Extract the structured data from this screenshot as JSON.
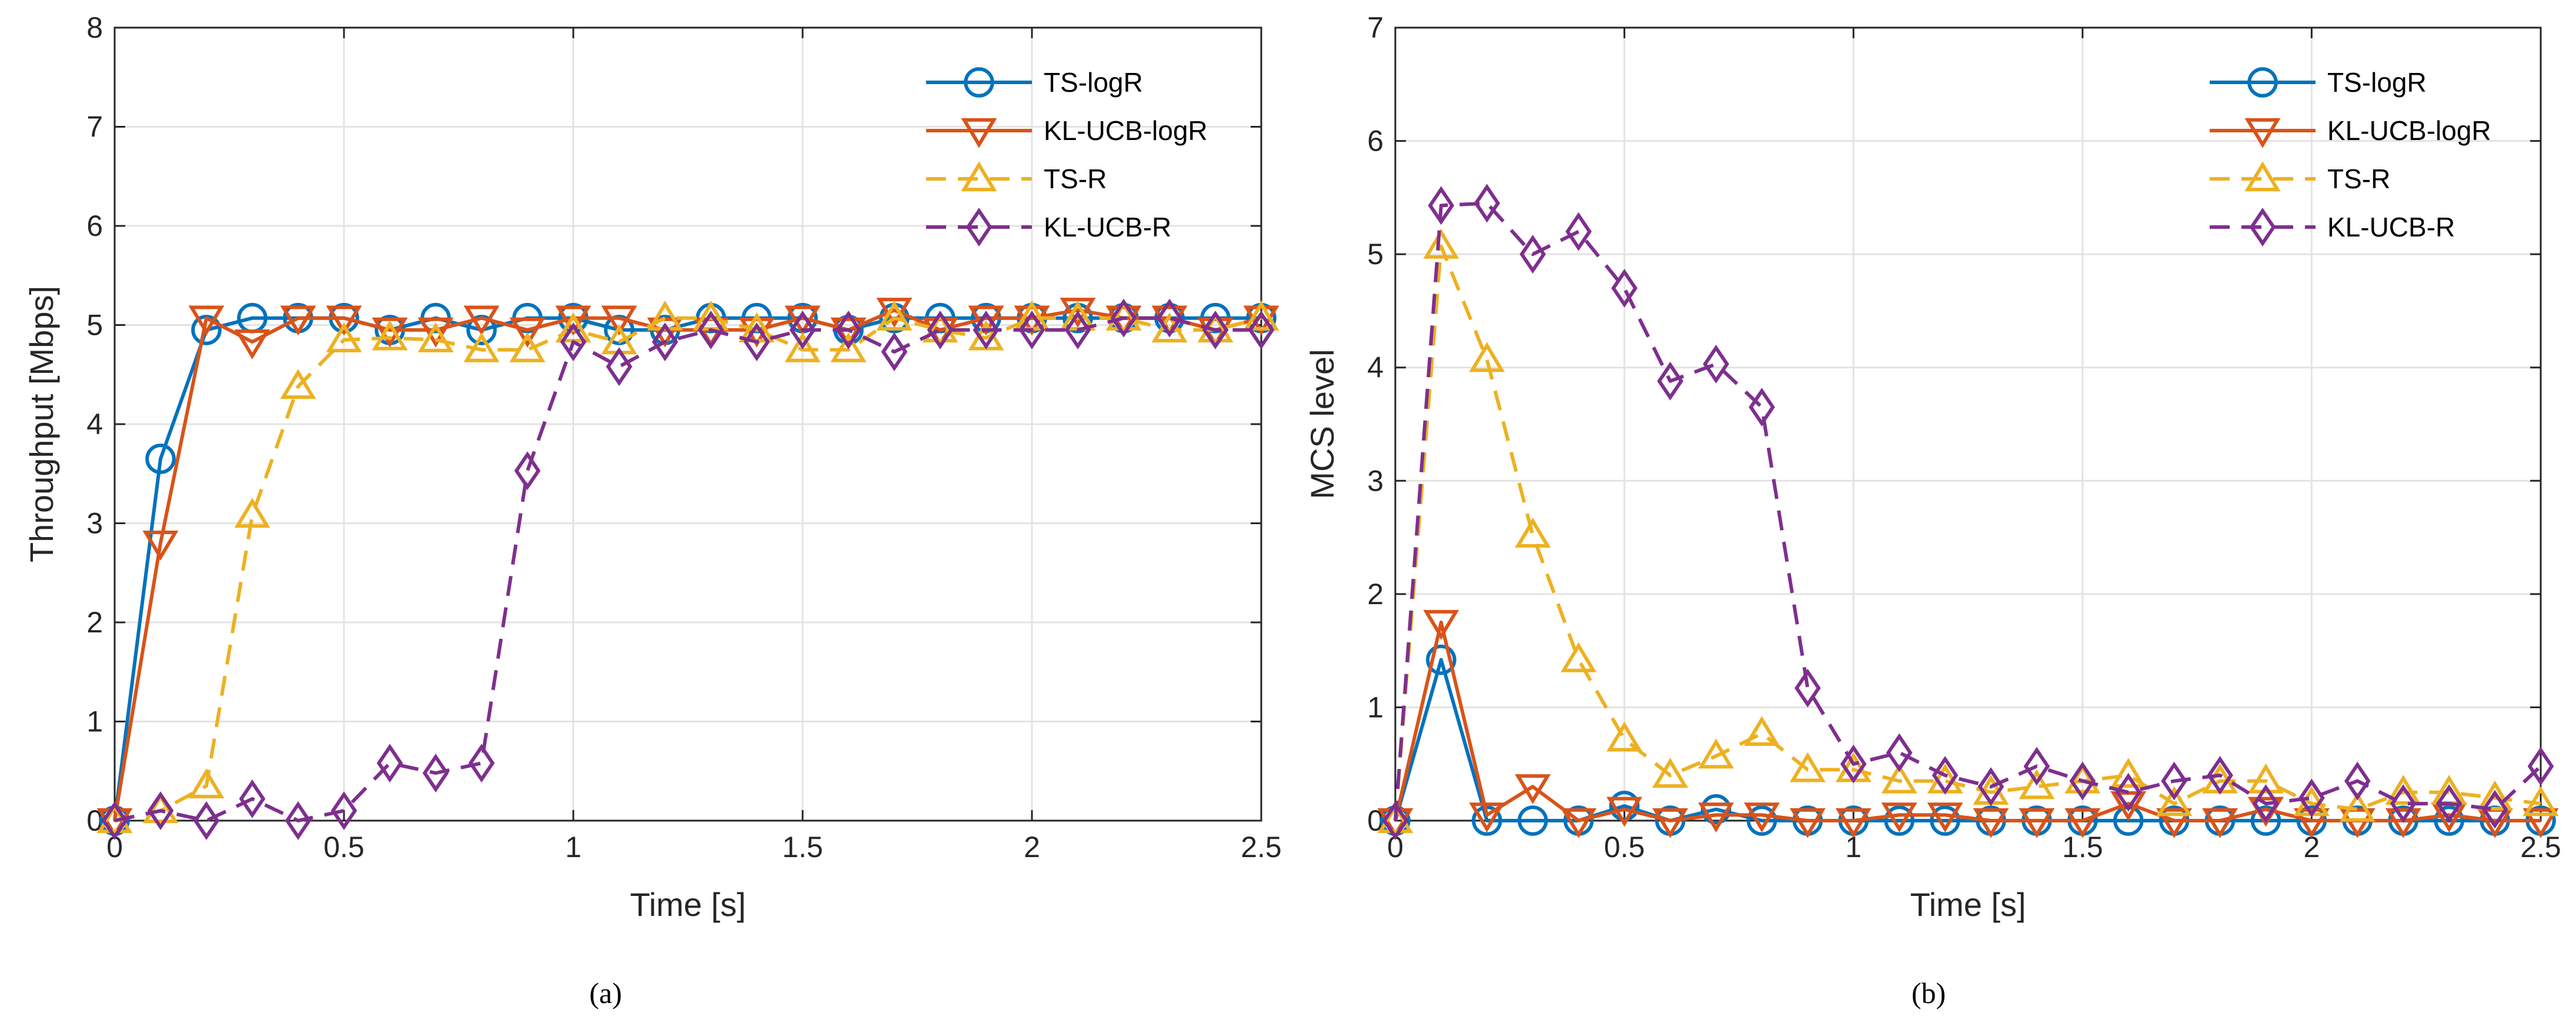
{
  "chart_data": [
    {
      "type": "line",
      "panel": "a",
      "caption": "(a)",
      "xlabel": "Time [s]",
      "ylabel": "Throughput [Mbps]",
      "xlim": [
        0,
        2.5
      ],
      "ylim": [
        0,
        8
      ],
      "xticks": [
        0,
        0.5,
        1,
        1.5,
        2,
        2.5
      ],
      "xtick_labels": [
        "0",
        "0.5",
        "1",
        "1.5",
        "2",
        "2.5"
      ],
      "yticks": [
        0,
        1,
        2,
        3,
        4,
        5,
        6,
        7,
        8
      ],
      "ytick_labels": [
        "0",
        "1",
        "2",
        "3",
        "4",
        "5",
        "6",
        "7",
        "8"
      ],
      "grid": true,
      "legend_position": "top-right",
      "x": [
        0,
        0.1,
        0.2,
        0.3,
        0.4,
        0.5,
        0.6,
        0.7,
        0.8,
        0.9,
        1.0,
        1.1,
        1.2,
        1.3,
        1.4,
        1.5,
        1.6,
        1.7,
        1.8,
        1.9,
        2.0,
        2.1,
        2.2,
        2.3,
        2.4,
        2.5
      ],
      "series": [
        {
          "name": "TS-logR",
          "color": "#0072BD",
          "dash": "solid",
          "marker": "circle",
          "values": [
            0,
            3.65,
            4.95,
            5.07,
            5.07,
            5.07,
            4.95,
            5.07,
            4.95,
            5.07,
            5.07,
            4.95,
            4.95,
            5.07,
            5.07,
            5.07,
            4.95,
            5.07,
            5.07,
            5.07,
            5.07,
            5.07,
            5.07,
            5.07,
            5.07,
            5.07
          ]
        },
        {
          "name": "KL-UCB-logR",
          "color": "#D95319",
          "dash": "solid",
          "marker": "triangle-down",
          "values": [
            0,
            2.8,
            5.07,
            4.83,
            5.07,
            5.07,
            4.95,
            4.95,
            5.07,
            4.95,
            5.07,
            5.07,
            4.95,
            4.95,
            4.95,
            5.07,
            4.95,
            5.15,
            4.95,
            5.07,
            5.07,
            5.15,
            5.07,
            5.07,
            4.95,
            5.07
          ]
        },
        {
          "name": "TS-R",
          "color": "#EDB120",
          "dash": "dashed",
          "marker": "triangle-up",
          "values": [
            0,
            0.1,
            0.35,
            3.08,
            4.38,
            4.85,
            4.87,
            4.85,
            4.75,
            4.75,
            4.95,
            4.83,
            5.07,
            5.07,
            4.95,
            4.75,
            4.75,
            5.07,
            4.95,
            4.87,
            5.07,
            5.07,
            5.07,
            4.95,
            4.95,
            5.07
          ]
        },
        {
          "name": "KL-UCB-R",
          "color": "#7E2F8E",
          "dash": "dashed",
          "marker": "diamond",
          "values": [
            0,
            0.1,
            0.0,
            0.22,
            0.0,
            0.1,
            0.58,
            0.48,
            0.58,
            3.53,
            4.83,
            4.58,
            4.83,
            4.95,
            4.83,
            4.95,
            4.95,
            4.73,
            4.95,
            4.95,
            4.95,
            4.95,
            5.07,
            5.07,
            4.95,
            4.95
          ]
        }
      ]
    },
    {
      "type": "line",
      "panel": "b",
      "caption": "(b)",
      "xlabel": "Time [s]",
      "ylabel": "MCS level",
      "xlim": [
        0,
        2.5
      ],
      "ylim": [
        0,
        7
      ],
      "xticks": [
        0,
        0.5,
        1,
        1.5,
        2,
        2.5
      ],
      "xtick_labels": [
        "0",
        "0.5",
        "1",
        "1.5",
        "2",
        "2.5"
      ],
      "yticks": [
        0,
        1,
        2,
        3,
        4,
        5,
        6,
        7
      ],
      "ytick_labels": [
        "0",
        "1",
        "2",
        "3",
        "4",
        "5",
        "6",
        "7"
      ],
      "grid": true,
      "legend_position": "top-right",
      "x": [
        0,
        0.1,
        0.2,
        0.3,
        0.4,
        0.5,
        0.6,
        0.7,
        0.8,
        0.9,
        1.0,
        1.1,
        1.2,
        1.3,
        1.4,
        1.5,
        1.6,
        1.7,
        1.8,
        1.9,
        2.0,
        2.1,
        2.2,
        2.3,
        2.4,
        2.5
      ],
      "series": [
        {
          "name": "TS-logR",
          "color": "#0072BD",
          "dash": "solid",
          "marker": "circle",
          "values": [
            0,
            1.42,
            0,
            0,
            0,
            0.13,
            0,
            0.1,
            0,
            0,
            0,
            0,
            0,
            0,
            0,
            0,
            0,
            0,
            0,
            0,
            0,
            0,
            0,
            0,
            0,
            0
          ]
        },
        {
          "name": "KL-UCB-logR",
          "color": "#D95319",
          "dash": "solid",
          "marker": "triangle-down",
          "values": [
            0,
            1.75,
            0.05,
            0.3,
            0,
            0.1,
            0,
            0.05,
            0.05,
            0,
            0,
            0.05,
            0.05,
            0,
            0,
            0,
            0.15,
            0,
            0,
            0.1,
            0,
            0,
            0,
            0.05,
            0,
            0
          ]
        },
        {
          "name": "TS-R",
          "color": "#EDB120",
          "dash": "dashed",
          "marker": "triangle-up",
          "values": [
            0,
            5.07,
            4.07,
            2.52,
            1.42,
            0.72,
            0.4,
            0.57,
            0.77,
            0.45,
            0.45,
            0.35,
            0.35,
            0.25,
            0.3,
            0.35,
            0.4,
            0.15,
            0.35,
            0.35,
            0.15,
            0.1,
            0.25,
            0.25,
            0.2,
            0.15
          ]
        },
        {
          "name": "KL-UCB-R",
          "color": "#7E2F8E",
          "dash": "dashed",
          "marker": "diamond",
          "values": [
            0,
            5.43,
            5.45,
            5.0,
            5.2,
            4.7,
            3.88,
            4.03,
            3.65,
            1.17,
            0.5,
            0.6,
            0.4,
            0.3,
            0.48,
            0.35,
            0.25,
            0.35,
            0.4,
            0.15,
            0.2,
            0.35,
            0.15,
            0.15,
            0.1,
            0.48
          ]
        }
      ]
    }
  ]
}
